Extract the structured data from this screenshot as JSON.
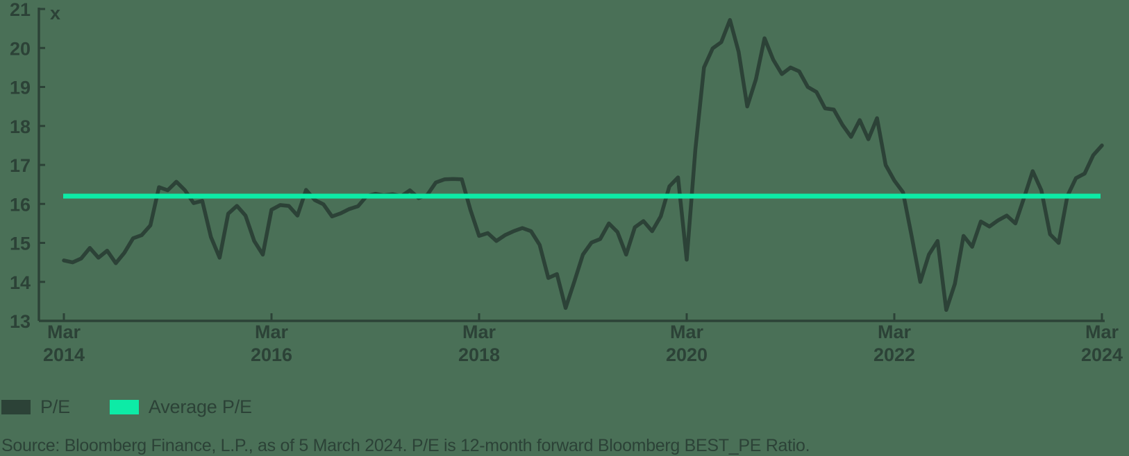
{
  "figure": {
    "background_color": "#4a7057",
    "text_color": "#2c4237"
  },
  "chart_data": {
    "type": "line",
    "title": "",
    "unit_label": "x",
    "grid": false,
    "legend_position": "bottom-left",
    "ylim": [
      13,
      21
    ],
    "y_ticks": [
      13,
      14,
      15,
      16,
      17,
      18,
      19,
      20,
      21
    ],
    "x_axis_months_span": 120,
    "x_ticks": [
      {
        "month_index": 0,
        "line1": "Mar",
        "line2": "2014"
      },
      {
        "month_index": 24,
        "line1": "Mar",
        "line2": "2016"
      },
      {
        "month_index": 48,
        "line1": "Mar",
        "line2": "2018"
      },
      {
        "month_index": 72,
        "line1": "Mar",
        "line2": "2020"
      },
      {
        "month_index": 96,
        "line1": "Mar",
        "line2": "2022"
      },
      {
        "month_index": 120,
        "line1": "Mar",
        "line2": "2024"
      }
    ],
    "series": [
      {
        "name": "P/E",
        "color": "#2c4237",
        "start": "Mar 2014",
        "end": "Mar 2024",
        "frequency": "monthly",
        "values": [
          14.55,
          14.5,
          14.6,
          14.87,
          14.62,
          14.8,
          14.48,
          14.75,
          15.12,
          15.2,
          15.45,
          16.43,
          16.35,
          16.57,
          16.35,
          16.02,
          16.08,
          15.15,
          14.62,
          15.75,
          15.95,
          15.7,
          15.05,
          14.7,
          15.85,
          15.97,
          15.95,
          15.7,
          16.36,
          16.1,
          15.99,
          15.68,
          15.76,
          15.87,
          15.94,
          16.2,
          16.26,
          16.22,
          16.25,
          16.2,
          16.35,
          16.15,
          16.23,
          16.55,
          16.63,
          16.64,
          16.63,
          15.85,
          15.18,
          15.25,
          15.05,
          15.2,
          15.3,
          15.38,
          15.3,
          14.95,
          14.1,
          14.2,
          13.33,
          14.0,
          14.7,
          15.01,
          15.1,
          15.5,
          15.28,
          14.7,
          15.4,
          15.56,
          15.3,
          15.68,
          16.45,
          16.68,
          14.57,
          17.4,
          19.5,
          19.99,
          20.15,
          20.72,
          19.9,
          18.5,
          19.2,
          20.25,
          19.7,
          19.33,
          19.5,
          19.4,
          19.0,
          18.87,
          18.45,
          18.42,
          18.03,
          17.72,
          18.15,
          17.66,
          18.2,
          17.0,
          16.6,
          16.3,
          15.18,
          14.0,
          14.7,
          15.05,
          13.28,
          13.95,
          15.18,
          14.9,
          15.55,
          15.42,
          15.58,
          15.7,
          15.5,
          16.16,
          16.84,
          16.35,
          15.22,
          15.0,
          16.2,
          16.66,
          16.78,
          17.25,
          17.5
        ]
      },
      {
        "name": "Average P/E",
        "type": "horizontal-line",
        "color": "#0deba6",
        "value": 16.2
      }
    ],
    "legend": [
      {
        "label": "P/E",
        "color": "#2c4237"
      },
      {
        "label": "Average P/E",
        "color": "#0deba6"
      }
    ]
  },
  "source_note": "Source: Bloomberg Finance, L.P., as of 5 March 2024. P/E is 12-month forward Bloomberg BEST_PE Ratio."
}
